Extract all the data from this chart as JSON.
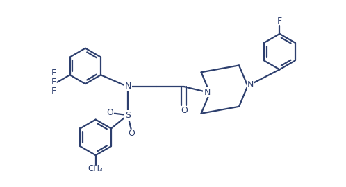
{
  "bg": "#ffffff",
  "lc": "#2d3f6e",
  "lw": 1.6,
  "figsize": [
    4.98,
    2.7
  ],
  "dpi": 100,
  "r_arom": 0.52,
  "xlim": [
    0,
    10
  ],
  "ylim": [
    0,
    5.4
  ]
}
